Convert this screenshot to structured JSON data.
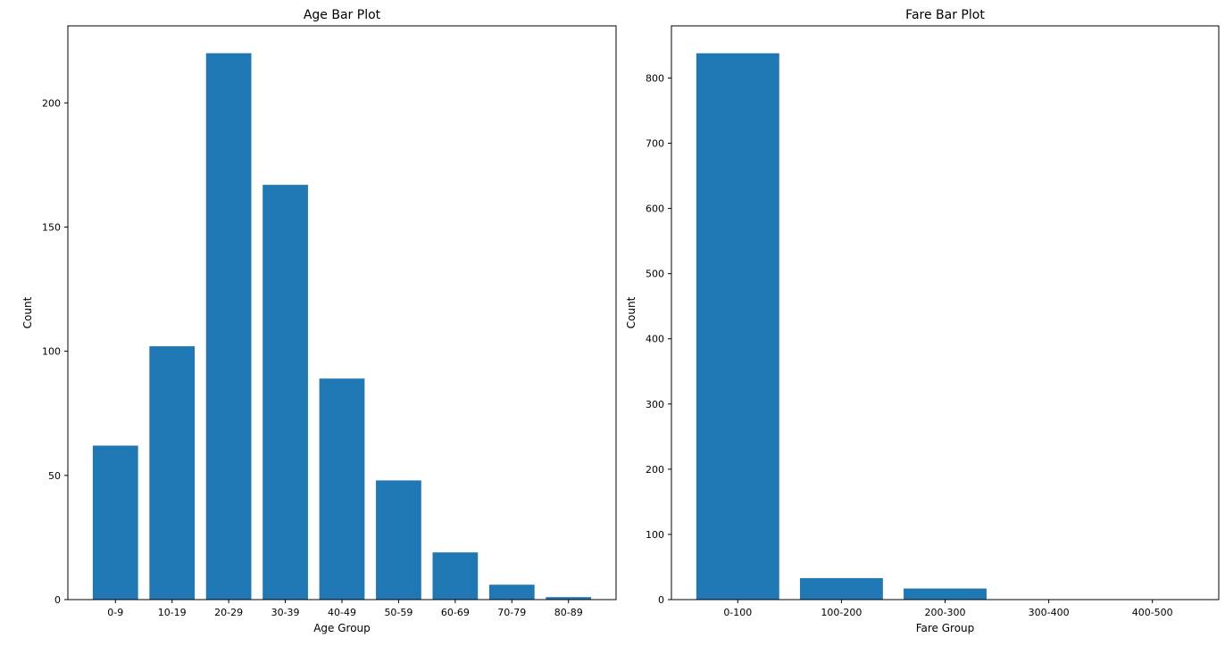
{
  "chart_data": [
    {
      "type": "bar",
      "title": "Age Bar Plot",
      "xlabel": "Age Group",
      "ylabel": "Count",
      "categories": [
        "0-9",
        "10-19",
        "20-29",
        "30-39",
        "40-49",
        "50-59",
        "60-69",
        "70-79",
        "80-89"
      ],
      "values": [
        62,
        102,
        220,
        167,
        89,
        48,
        19,
        6,
        1
      ],
      "ylim": [
        0,
        231
      ],
      "yticks": [
        0,
        50,
        100,
        150,
        200
      ],
      "color": "#1f77b4",
      "grid": false
    },
    {
      "type": "bar",
      "title": "Fare Bar Plot",
      "xlabel": "Fare Group",
      "ylabel": "Count",
      "categories": [
        "0-100",
        "100-200",
        "200-300",
        "300-400",
        "400-500"
      ],
      "values": [
        838,
        33,
        17,
        0,
        0
      ],
      "ylim": [
        0,
        880
      ],
      "yticks": [
        0,
        100,
        200,
        300,
        400,
        500,
        600,
        700,
        800
      ],
      "color": "#1f77b4",
      "grid": false
    }
  ]
}
